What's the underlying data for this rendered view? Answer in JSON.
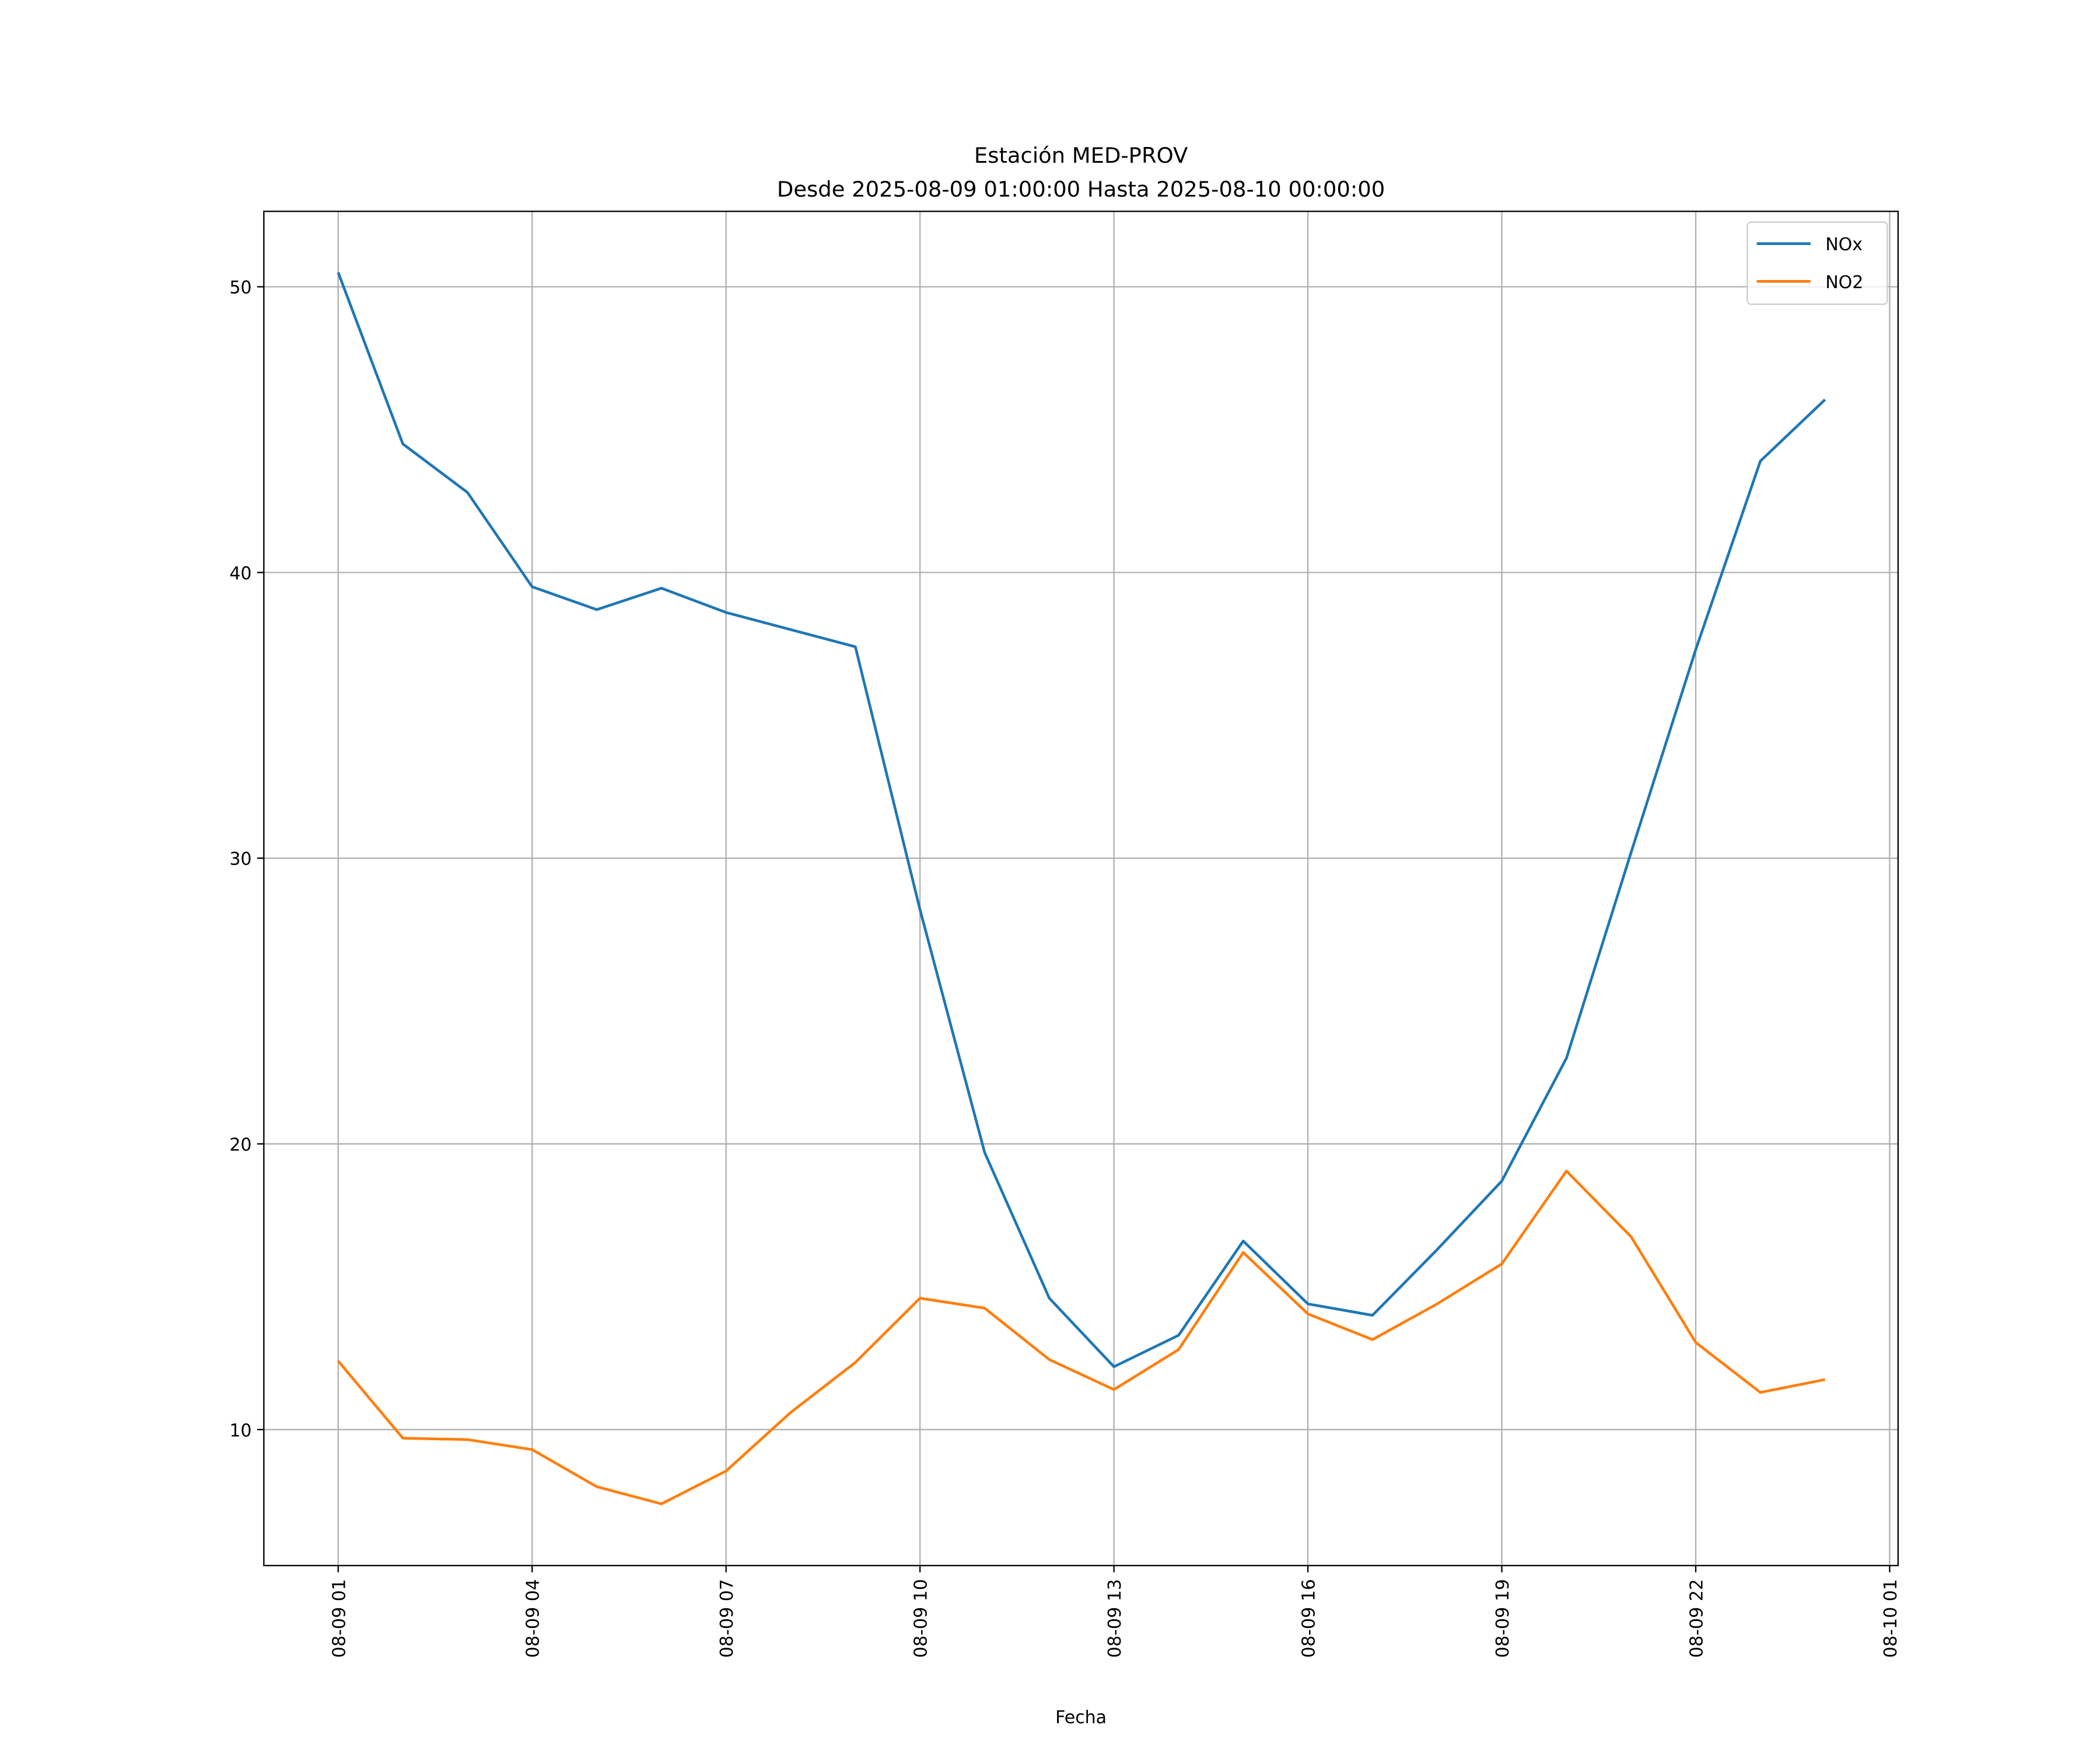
{
  "chart_data": {
    "type": "line",
    "title": "Estación MED-PROV",
    "subtitle": "Desde 2025-08-09 01:00:00 Hasta 2025-08-10 00:00:00",
    "xlabel": "Fecha",
    "ylabel": "",
    "x_unit": "hours since 2025-08-09 00:00",
    "x": [
      1,
      2,
      3,
      4,
      5,
      6,
      7,
      8,
      9,
      10,
      11,
      12,
      13,
      14,
      15,
      16,
      17,
      18,
      19,
      20,
      21,
      22,
      23,
      24
    ],
    "xlim": [
      -0.15,
      25.13
    ],
    "ylim": [
      5.24,
      52.64
    ],
    "xticks": [
      1,
      4,
      7,
      10,
      13,
      16,
      19,
      22,
      25
    ],
    "xtick_labels": [
      "08-09 01",
      "08-09 04",
      "08-09 07",
      "08-09 10",
      "08-09 13",
      "08-09 16",
      "08-09 19",
      "08-09 22",
      "08-10 01"
    ],
    "yticks": [
      10,
      20,
      30,
      40,
      50
    ],
    "ytick_labels": [
      "10",
      "20",
      "30",
      "40",
      "50"
    ],
    "grid": true,
    "legend_position": "top-right",
    "series": [
      {
        "name": "NOx",
        "color": "#1f77b4",
        "values": [
          50.5,
          44.5,
          42.8,
          39.5,
          38.7,
          39.45,
          38.6,
          38.0,
          37.4,
          28.2,
          19.7,
          14.6,
          12.2,
          13.3,
          16.6,
          14.4,
          14.0,
          16.3,
          18.7,
          23.0,
          30.2,
          37.3,
          43.9,
          46.05
        ]
      },
      {
        "name": "NO2",
        "color": "#ff7f0e",
        "values": [
          12.4,
          9.7,
          9.65,
          9.3,
          8.0,
          7.4,
          8.55,
          10.6,
          12.35,
          14.6,
          14.25,
          12.45,
          11.4,
          12.8,
          16.2,
          14.05,
          13.15,
          14.4,
          15.8,
          19.05,
          16.75,
          13.05,
          11.3,
          11.75
        ]
      }
    ]
  }
}
